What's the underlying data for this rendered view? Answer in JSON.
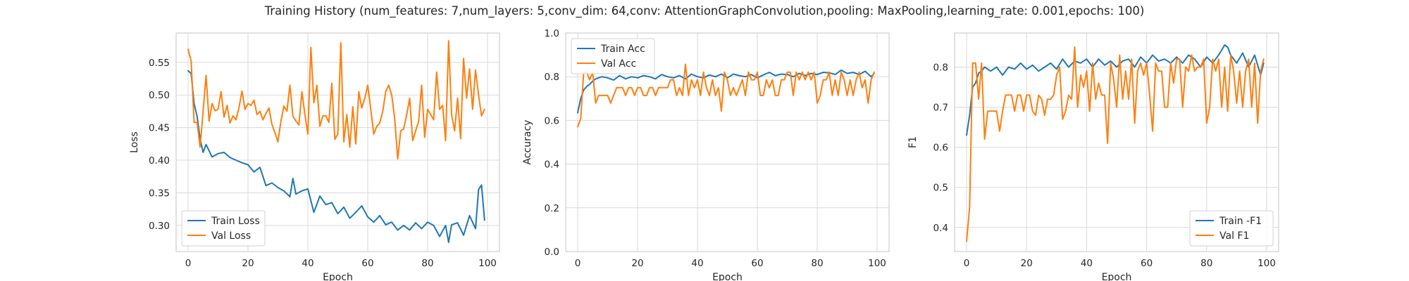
{
  "figure": {
    "suptitle": "Training History (num_features: 7,num_layers: 5,conv_dim: 64,conv: AttentionGraphConvolution,pooling: MaxPooling,learning_rate: 0.001,epochs: 100)"
  },
  "colors": {
    "series1": "#1f77b4",
    "series2": "#ff7f0e",
    "grid": "#d9d9d9",
    "spine": "#cfcfcf"
  },
  "chart_data": [
    {
      "type": "line",
      "xlabel": "Epoch",
      "ylabel": "Loss",
      "xlim": [
        -4,
        104
      ],
      "ylim": [
        0.26,
        0.595
      ],
      "xticks": [
        0,
        20,
        40,
        60,
        80,
        100
      ],
      "yticks": [
        0.3,
        0.35,
        0.4,
        0.45,
        0.5,
        0.55
      ],
      "ytick_labels": [
        "0.30",
        "0.35",
        "0.40",
        "0.45",
        "0.50",
        "0.55"
      ],
      "grid": true,
      "legend_position": "lower-left",
      "series": [
        {
          "name": "Train Loss",
          "color": "#1f77b4",
          "x": [
            0,
            1,
            2,
            3,
            4,
            5,
            6,
            8,
            10,
            12,
            14,
            16,
            18,
            20,
            22,
            24,
            26,
            28,
            30,
            32,
            34,
            35,
            36,
            38,
            40,
            42,
            44,
            46,
            48,
            50,
            52,
            54,
            56,
            58,
            60,
            62,
            64,
            66,
            68,
            70,
            72,
            74,
            76,
            78,
            80,
            82,
            84,
            86,
            87,
            88,
            90,
            92,
            94,
            96,
            97,
            98,
            99
          ],
          "y": [
            0.537,
            0.533,
            0.487,
            0.467,
            0.433,
            0.412,
            0.424,
            0.405,
            0.41,
            0.412,
            0.404,
            0.4,
            0.396,
            0.393,
            0.382,
            0.389,
            0.361,
            0.365,
            0.358,
            0.353,
            0.344,
            0.372,
            0.348,
            0.353,
            0.356,
            0.32,
            0.345,
            0.332,
            0.335,
            0.318,
            0.328,
            0.311,
            0.32,
            0.33,
            0.313,
            0.305,
            0.315,
            0.301,
            0.305,
            0.293,
            0.3,
            0.293,
            0.304,
            0.295,
            0.305,
            0.3,
            0.283,
            0.3,
            0.274,
            0.301,
            0.304,
            0.285,
            0.315,
            0.295,
            0.355,
            0.362,
            0.308
          ]
        },
        {
          "name": "Val Loss",
          "color": "#ff7f0e",
          "x": [
            0,
            1,
            2,
            3,
            4,
            5,
            6,
            7,
            8,
            9,
            10,
            11,
            12,
            13,
            14,
            15,
            16,
            17,
            18,
            19,
            20,
            21,
            22,
            23,
            24,
            25,
            26,
            27,
            28,
            29,
            30,
            31,
            32,
            33,
            34,
            35,
            36,
            37,
            38,
            39,
            40,
            41,
            42,
            43,
            44,
            45,
            46,
            47,
            48,
            49,
            50,
            51,
            52,
            53,
            54,
            55,
            56,
            57,
            58,
            59,
            60,
            61,
            62,
            63,
            64,
            65,
            66,
            67,
            68,
            69,
            70,
            71,
            72,
            73,
            74,
            75,
            76,
            77,
            78,
            79,
            80,
            81,
            82,
            83,
            84,
            85,
            86,
            87,
            88,
            89,
            90,
            91,
            92,
            93,
            94,
            95,
            96,
            97,
            98,
            99
          ],
          "y": [
            0.57,
            0.552,
            0.458,
            0.458,
            0.42,
            0.475,
            0.53,
            0.46,
            0.487,
            0.476,
            0.478,
            0.505,
            0.466,
            0.484,
            0.457,
            0.468,
            0.462,
            0.481,
            0.506,
            0.478,
            0.487,
            0.484,
            0.492,
            0.47,
            0.475,
            0.462,
            0.472,
            0.48,
            0.455,
            0.442,
            0.428,
            0.46,
            0.483,
            0.475,
            0.515,
            0.467,
            0.46,
            0.454,
            0.505,
            0.47,
            0.44,
            0.573,
            0.488,
            0.515,
            0.452,
            0.468,
            0.468,
            0.458,
            0.518,
            0.432,
            0.44,
            0.58,
            0.428,
            0.47,
            0.42,
            0.482,
            0.425,
            0.505,
            0.48,
            0.495,
            0.515,
            0.478,
            0.44,
            0.452,
            0.457,
            0.475,
            0.505,
            0.515,
            0.5,
            0.463,
            0.402,
            0.445,
            0.448,
            0.47,
            0.495,
            0.43,
            0.445,
            0.46,
            0.515,
            0.435,
            0.478,
            0.47,
            0.462,
            0.535,
            0.478,
            0.484,
            0.43,
            0.583,
            0.47,
            0.445,
            0.495,
            0.433,
            0.556,
            0.495,
            0.54,
            0.478,
            0.538,
            0.5,
            0.468,
            0.478
          ]
        }
      ]
    },
    {
      "type": "line",
      "xlabel": "Epoch",
      "ylabel": "Accuracy",
      "xlim": [
        -4,
        104
      ],
      "ylim": [
        0.0,
        1.0
      ],
      "xticks": [
        0,
        20,
        40,
        60,
        80,
        100
      ],
      "yticks": [
        0.0,
        0.2,
        0.4,
        0.6,
        0.8,
        1.0
      ],
      "ytick_labels": [
        "0.0",
        "0.2",
        "0.4",
        "0.6",
        "0.8",
        "1.0"
      ],
      "grid": true,
      "legend_position": "top-left",
      "series": [
        {
          "name": "Train Acc",
          "color": "#1f77b4",
          "x": [
            0,
            1,
            2,
            3,
            4,
            5,
            6,
            8,
            10,
            12,
            14,
            16,
            18,
            20,
            22,
            24,
            26,
            28,
            30,
            32,
            34,
            36,
            38,
            40,
            42,
            44,
            46,
            48,
            50,
            52,
            54,
            56,
            58,
            60,
            62,
            64,
            66,
            68,
            70,
            72,
            74,
            76,
            78,
            80,
            82,
            84,
            86,
            88,
            90,
            92,
            94,
            96,
            98,
            99
          ],
          "y": [
            0.635,
            0.7,
            0.74,
            0.755,
            0.765,
            0.78,
            0.79,
            0.8,
            0.795,
            0.785,
            0.805,
            0.79,
            0.8,
            0.795,
            0.805,
            0.8,
            0.79,
            0.81,
            0.8,
            0.795,
            0.805,
            0.79,
            0.812,
            0.8,
            0.795,
            0.808,
            0.8,
            0.812,
            0.795,
            0.812,
            0.805,
            0.8,
            0.81,
            0.795,
            0.808,
            0.82,
            0.805,
            0.812,
            0.81,
            0.8,
            0.815,
            0.805,
            0.815,
            0.81,
            0.82,
            0.818,
            0.81,
            0.83,
            0.815,
            0.82,
            0.81,
            0.825,
            0.8,
            0.815
          ]
        },
        {
          "name": "Val Acc",
          "color": "#ff7f0e",
          "x": [
            0,
            1,
            2,
            3,
            4,
            5,
            6,
            7,
            8,
            9,
            10,
            11,
            12,
            13,
            14,
            15,
            16,
            17,
            18,
            19,
            20,
            21,
            22,
            23,
            24,
            25,
            26,
            27,
            28,
            29,
            30,
            31,
            32,
            33,
            34,
            35,
            36,
            37,
            38,
            39,
            40,
            41,
            42,
            43,
            44,
            45,
            46,
            47,
            48,
            49,
            50,
            51,
            52,
            53,
            54,
            55,
            56,
            57,
            58,
            59,
            60,
            61,
            62,
            63,
            64,
            65,
            66,
            67,
            68,
            69,
            70,
            71,
            72,
            73,
            74,
            75,
            76,
            77,
            78,
            79,
            80,
            81,
            82,
            83,
            84,
            85,
            86,
            87,
            88,
            89,
            90,
            91,
            92,
            93,
            94,
            95,
            96,
            97,
            98,
            99
          ],
          "y": [
            0.571,
            0.607,
            0.821,
            0.821,
            0.786,
            0.821,
            0.679,
            0.714,
            0.714,
            0.714,
            0.714,
            0.679,
            0.714,
            0.75,
            0.75,
            0.75,
            0.714,
            0.75,
            0.75,
            0.714,
            0.75,
            0.75,
            0.714,
            0.714,
            0.75,
            0.75,
            0.714,
            0.75,
            0.75,
            0.75,
            0.75,
            0.786,
            0.786,
            0.714,
            0.75,
            0.714,
            0.857,
            0.714,
            0.786,
            0.75,
            0.786,
            0.714,
            0.821,
            0.75,
            0.714,
            0.786,
            0.714,
            0.75,
            0.643,
            0.821,
            0.786,
            0.714,
            0.75,
            0.714,
            0.75,
            0.786,
            0.714,
            0.821,
            0.786,
            0.786,
            0.821,
            0.714,
            0.714,
            0.786,
            0.75,
            0.786,
            0.714,
            0.714,
            0.786,
            0.786,
            0.821,
            0.821,
            0.714,
            0.821,
            0.786,
            0.821,
            0.786,
            0.821,
            0.786,
            0.821,
            0.679,
            0.714,
            0.786,
            0.786,
            0.821,
            0.714,
            0.786,
            0.714,
            0.821,
            0.786,
            0.714,
            0.786,
            0.714,
            0.786,
            0.821,
            0.75,
            0.786,
            0.679,
            0.786,
            0.821
          ]
        }
      ]
    },
    {
      "type": "line",
      "xlabel": "Epoch",
      "ylabel": "F1",
      "xlim": [
        -4,
        104
      ],
      "ylim": [
        0.34,
        0.885
      ],
      "xticks": [
        0,
        20,
        40,
        60,
        80,
        100
      ],
      "yticks": [
        0.4,
        0.5,
        0.6,
        0.7,
        0.8
      ],
      "ytick_labels": [
        "0.4",
        "0.5",
        "0.6",
        "0.7",
        "0.8"
      ],
      "grid": true,
      "legend_position": "lower-right",
      "series": [
        {
          "name": "Train -F1",
          "color": "#1f77b4",
          "x": [
            0,
            1,
            2,
            3,
            4,
            5,
            6,
            8,
            10,
            12,
            14,
            16,
            18,
            20,
            22,
            24,
            26,
            28,
            30,
            32,
            34,
            36,
            38,
            40,
            42,
            44,
            46,
            48,
            50,
            52,
            54,
            56,
            58,
            60,
            62,
            64,
            66,
            68,
            70,
            72,
            74,
            76,
            78,
            80,
            82,
            84,
            86,
            87,
            88,
            90,
            92,
            94,
            96,
            98,
            99
          ],
          "y": [
            0.63,
            0.68,
            0.75,
            0.76,
            0.785,
            0.79,
            0.8,
            0.79,
            0.8,
            0.78,
            0.8,
            0.795,
            0.81,
            0.795,
            0.805,
            0.79,
            0.8,
            0.81,
            0.795,
            0.82,
            0.8,
            0.815,
            0.81,
            0.82,
            0.8,
            0.82,
            0.805,
            0.815,
            0.8,
            0.815,
            0.82,
            0.8,
            0.825,
            0.81,
            0.83,
            0.815,
            0.82,
            0.81,
            0.825,
            0.81,
            0.83,
            0.82,
            0.8,
            0.825,
            0.81,
            0.83,
            0.855,
            0.85,
            0.83,
            0.81,
            0.835,
            0.8,
            0.83,
            0.78,
            0.81
          ]
        },
        {
          "name": "Val F1",
          "color": "#ff7f0e",
          "x": [
            0,
            1,
            2,
            3,
            4,
            5,
            6,
            7,
            8,
            9,
            10,
            11,
            12,
            13,
            14,
            15,
            16,
            17,
            18,
            19,
            20,
            21,
            22,
            23,
            24,
            25,
            26,
            27,
            28,
            29,
            30,
            31,
            32,
            33,
            34,
            35,
            36,
            37,
            38,
            39,
            40,
            41,
            42,
            43,
            44,
            45,
            46,
            47,
            48,
            49,
            50,
            51,
            52,
            53,
            54,
            55,
            56,
            57,
            58,
            59,
            60,
            61,
            62,
            63,
            64,
            65,
            66,
            67,
            68,
            69,
            70,
            71,
            72,
            73,
            74,
            75,
            76,
            77,
            78,
            79,
            80,
            81,
            82,
            83,
            84,
            85,
            86,
            87,
            88,
            89,
            90,
            91,
            92,
            93,
            94,
            95,
            96,
            97,
            98,
            99
          ],
          "y": [
            0.365,
            0.45,
            0.81,
            0.81,
            0.72,
            0.81,
            0.62,
            0.69,
            0.69,
            0.69,
            0.69,
            0.64,
            0.69,
            0.73,
            0.73,
            0.73,
            0.69,
            0.73,
            0.73,
            0.69,
            0.73,
            0.73,
            0.69,
            0.68,
            0.73,
            0.72,
            0.68,
            0.72,
            0.72,
            0.73,
            0.78,
            0.8,
            0.67,
            0.69,
            0.73,
            0.72,
            0.85,
            0.7,
            0.78,
            0.75,
            0.79,
            0.69,
            0.81,
            0.72,
            0.76,
            0.73,
            0.73,
            0.61,
            0.81,
            0.77,
            0.7,
            0.83,
            0.72,
            0.79,
            0.72,
            0.82,
            0.66,
            0.79,
            0.81,
            0.78,
            0.81,
            0.73,
            0.64,
            0.81,
            0.79,
            0.79,
            0.7,
            0.7,
            0.81,
            0.76,
            0.82,
            0.82,
            0.7,
            0.8,
            0.79,
            0.83,
            0.79,
            0.8,
            0.8,
            0.82,
            0.66,
            0.7,
            0.82,
            0.79,
            0.82,
            0.7,
            0.8,
            0.69,
            0.83,
            0.79,
            0.71,
            0.79,
            0.7,
            0.79,
            0.82,
            0.7,
            0.81,
            0.66,
            0.79,
            0.82
          ]
        }
      ]
    }
  ]
}
